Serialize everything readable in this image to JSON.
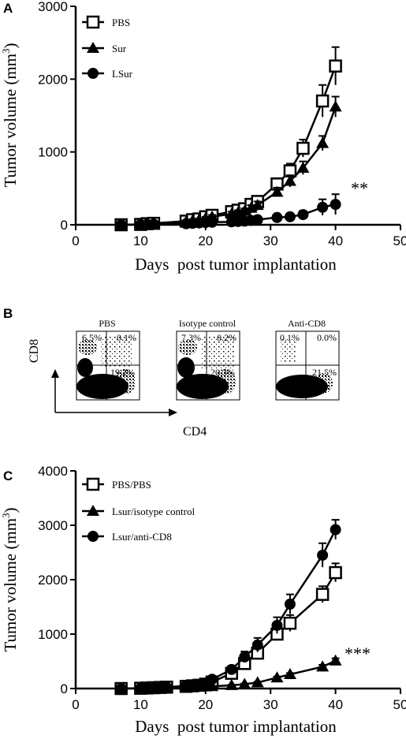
{
  "panels": {
    "A": {
      "letter": "A"
    },
    "B": {
      "letter": "B"
    },
    "C": {
      "letter": "C"
    }
  },
  "chart_data": [
    {
      "panel": "A",
      "type": "line",
      "ylabel": "Tumor volume (mm3)",
      "ylabel_base": "Tumor volume (mm",
      "ylabel_sup": "3",
      "ylabel_end": ")",
      "xlabel": "Days  post tumor implantation",
      "xlim": [
        0,
        50
      ],
      "ylim": [
        0,
        3000
      ],
      "xticks": [
        0,
        10,
        20,
        30,
        40,
        50
      ],
      "yticks": [
        0,
        1000,
        2000,
        3000
      ],
      "legend_position": "top-left",
      "annotation": {
        "text": "**",
        "x": 43,
        "y": 480
      },
      "series": [
        {
          "name": "PBS",
          "marker": "square-open",
          "x": [
            7,
            10,
            11,
            12,
            17,
            18,
            19,
            20,
            21,
            24,
            25,
            26,
            27,
            28,
            31,
            33,
            35,
            38,
            40
          ],
          "y": [
            0,
            5,
            15,
            20,
            50,
            70,
            80,
            110,
            130,
            180,
            200,
            220,
            280,
            320,
            560,
            740,
            1050,
            1700,
            2180
          ],
          "err": [
            0,
            5,
            5,
            8,
            15,
            20,
            20,
            30,
            30,
            40,
            40,
            45,
            50,
            60,
            80,
            100,
            120,
            220,
            260
          ]
        },
        {
          "name": "Sur",
          "marker": "triangle-filled",
          "x": [
            7,
            10,
            11,
            12,
            17,
            18,
            19,
            20,
            21,
            24,
            25,
            26,
            27,
            28,
            31,
            33,
            35,
            38,
            40
          ],
          "y": [
            0,
            5,
            10,
            15,
            40,
            60,
            70,
            90,
            110,
            150,
            170,
            190,
            230,
            270,
            450,
            600,
            780,
            1120,
            1620
          ],
          "err": [
            0,
            5,
            5,
            5,
            10,
            15,
            15,
            20,
            25,
            30,
            30,
            35,
            40,
            50,
            60,
            80,
            90,
            100,
            140
          ]
        },
        {
          "name": "LSur",
          "marker": "circle-filled",
          "x": [
            7,
            10,
            11,
            12,
            17,
            18,
            19,
            20,
            21,
            24,
            25,
            26,
            27,
            28,
            31,
            33,
            35,
            38,
            40
          ],
          "y": [
            0,
            3,
            5,
            8,
            15,
            20,
            25,
            30,
            35,
            40,
            45,
            50,
            60,
            70,
            100,
            110,
            140,
            240,
            280
          ],
          "err": [
            0,
            3,
            3,
            5,
            5,
            8,
            8,
            10,
            10,
            12,
            15,
            15,
            20,
            20,
            30,
            35,
            50,
            110,
            140
          ]
        }
      ]
    },
    {
      "panel": "C",
      "type": "line",
      "ylabel": "Tumor volume (mm3)",
      "ylabel_base": "Tumor volume (mm",
      "ylabel_sup": "3",
      "ylabel_end": ")",
      "xlabel": "Days  post tumor implantation",
      "xlim": [
        0,
        50
      ],
      "ylim": [
        0,
        4000
      ],
      "xticks": [
        0,
        10,
        20,
        30,
        40,
        50
      ],
      "yticks": [
        0,
        1000,
        2000,
        3000,
        4000
      ],
      "legend_position": "top-left",
      "annotation": {
        "text": "***",
        "x": 42,
        "y": 620
      },
      "series": [
        {
          "name": "PBS/PBS",
          "marker": "square-open",
          "x": [
            7,
            10,
            11,
            12,
            13,
            14,
            17,
            18,
            19,
            20,
            21,
            24,
            26,
            28,
            31,
            33,
            38,
            40
          ],
          "y": [
            0,
            5,
            10,
            15,
            20,
            25,
            40,
            50,
            60,
            80,
            120,
            280,
            460,
            650,
            1000,
            1200,
            1730,
            2130
          ],
          "err": [
            0,
            5,
            5,
            5,
            8,
            8,
            10,
            12,
            15,
            20,
            30,
            60,
            80,
            100,
            120,
            150,
            150,
            170
          ]
        },
        {
          "name": "Lsur/isotype control",
          "marker": "triangle-filled",
          "x": [
            7,
            10,
            11,
            12,
            13,
            14,
            17,
            18,
            19,
            20,
            21,
            24,
            26,
            28,
            31,
            33,
            38,
            40
          ],
          "y": [
            0,
            3,
            5,
            8,
            10,
            12,
            20,
            25,
            30,
            35,
            40,
            60,
            80,
            110,
            200,
            260,
            400,
            510
          ],
          "err": [
            0,
            3,
            3,
            3,
            4,
            4,
            5,
            5,
            6,
            6,
            8,
            10,
            12,
            15,
            20,
            25,
            35,
            45
          ]
        },
        {
          "name": "Lsur/anti-CD8",
          "marker": "circle-filled",
          "x": [
            7,
            10,
            11,
            12,
            13,
            14,
            17,
            18,
            19,
            20,
            21,
            24,
            26,
            28,
            31,
            33,
            38,
            40
          ],
          "y": [
            0,
            5,
            10,
            15,
            20,
            25,
            50,
            60,
            70,
            100,
            170,
            350,
            580,
            800,
            1160,
            1550,
            2450,
            2920
          ],
          "err": [
            0,
            5,
            5,
            8,
            8,
            10,
            12,
            15,
            15,
            20,
            35,
            70,
            100,
            130,
            150,
            180,
            220,
            180
          ]
        }
      ]
    }
  ],
  "facs": {
    "y_axis_label": "CD8",
    "x_axis_label": "CD4",
    "plots": [
      {
        "title": "PBS",
        "ul": "6.5%",
        "ur": "0.1%",
        "lr": "19.2%"
      },
      {
        "title": "Isotype control",
        "ul": "7.3%",
        "ur": "0.2%",
        "lr": "20.3%"
      },
      {
        "title": "Anti-CD8",
        "ul": "0.1%",
        "ur": "0.0%",
        "lr": "21.5%"
      }
    ]
  }
}
